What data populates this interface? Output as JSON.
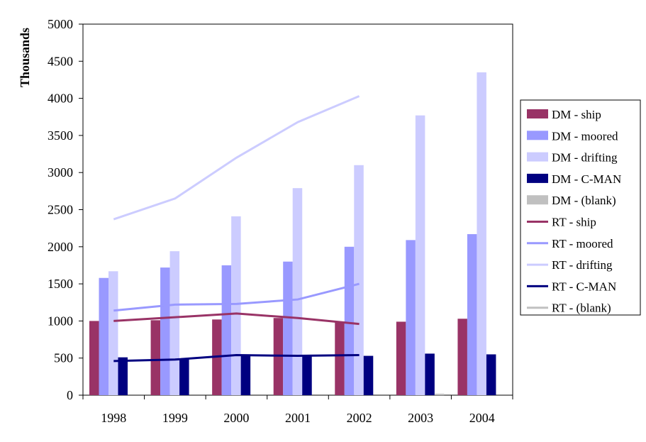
{
  "chart_data": {
    "type": "bar",
    "ylabel": "Thousands",
    "xlabel": "",
    "title": "",
    "ylim": [
      0,
      5000
    ],
    "yticks": [
      0,
      500,
      1000,
      1500,
      2000,
      2500,
      3000,
      3500,
      4000,
      4500,
      5000
    ],
    "categories": [
      "1998",
      "1999",
      "2000",
      "2001",
      "2002",
      "2003",
      "2004"
    ],
    "grid": false,
    "legend_position": "right",
    "bar_series": [
      {
        "name": "DM - ship",
        "color": "#993366",
        "values": [
          1000,
          1010,
          1020,
          1040,
          990,
          990,
          1030
        ]
      },
      {
        "name": "DM - moored",
        "color": "#9999ff",
        "values": [
          1580,
          1720,
          1750,
          1800,
          2000,
          2090,
          2170
        ]
      },
      {
        "name": "DM - drifting",
        "color": "#ccccff",
        "values": [
          1670,
          1940,
          2410,
          2790,
          3100,
          3770,
          4350
        ]
      },
      {
        "name": "DM - C-MAN",
        "color": "#000080",
        "values": [
          510,
          490,
          540,
          530,
          530,
          560,
          550
        ]
      },
      {
        "name": "DM - (blank)",
        "color": "#c0c0c0",
        "values": [
          0,
          0,
          0,
          0,
          0,
          20,
          0
        ]
      }
    ],
    "line_series": [
      {
        "name": "RT - ship",
        "color": "#993366",
        "values": [
          1000,
          1050,
          1100,
          1040,
          960,
          null,
          null
        ]
      },
      {
        "name": "RT - moored",
        "color": "#9999ff",
        "values": [
          1140,
          1220,
          1230,
          1290,
          1500,
          null,
          null
        ]
      },
      {
        "name": "RT - drifting",
        "color": "#ccccff",
        "values": [
          2370,
          2650,
          3200,
          3680,
          4030,
          null,
          null
        ]
      },
      {
        "name": "RT - C-MAN",
        "color": "#000080",
        "values": [
          460,
          480,
          540,
          530,
          540,
          null,
          null
        ]
      },
      {
        "name": "RT - (blank)",
        "color": "#c0c0c0",
        "values": [
          null,
          null,
          null,
          null,
          null,
          null,
          null
        ]
      }
    ]
  }
}
